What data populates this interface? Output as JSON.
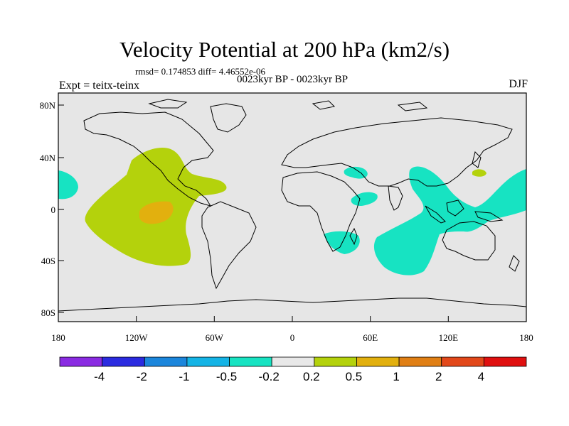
{
  "title": "Velocity Potential at 200 hPa (km2/s)",
  "stats": "rmsd= 0.174853 diff= 4.46552e-06",
  "subtitle": "0023kyr BP - 0023kyr BP",
  "left_label": "Expt = teitx-teinx",
  "right_label": "DJF",
  "lat_labels": [
    "80N",
    "40N",
    "0",
    "40S",
    "80S"
  ],
  "lon_labels": [
    "180",
    "120W",
    "60W",
    "0",
    "60E",
    "120E",
    "180"
  ],
  "colorbar": {
    "colors": [
      "#8a2be2",
      "#2b2be0",
      "#1b86dc",
      "#14b4e6",
      "#17e3c2",
      "#e8e8e8",
      "#b4d20c",
      "#e2b00e",
      "#e07f14",
      "#e2481a",
      "#e01010"
    ],
    "labels": [
      "-4",
      "-2",
      "-1",
      "-0.5",
      "-0.2",
      "0.2",
      "0.5",
      "1",
      "2",
      "4"
    ]
  },
  "colors": {
    "background": "#e6e6e6",
    "positive_weak": "#b4d20c",
    "positive_mid": "#e2b00e",
    "negative_weak": "#17e3c2"
  }
}
